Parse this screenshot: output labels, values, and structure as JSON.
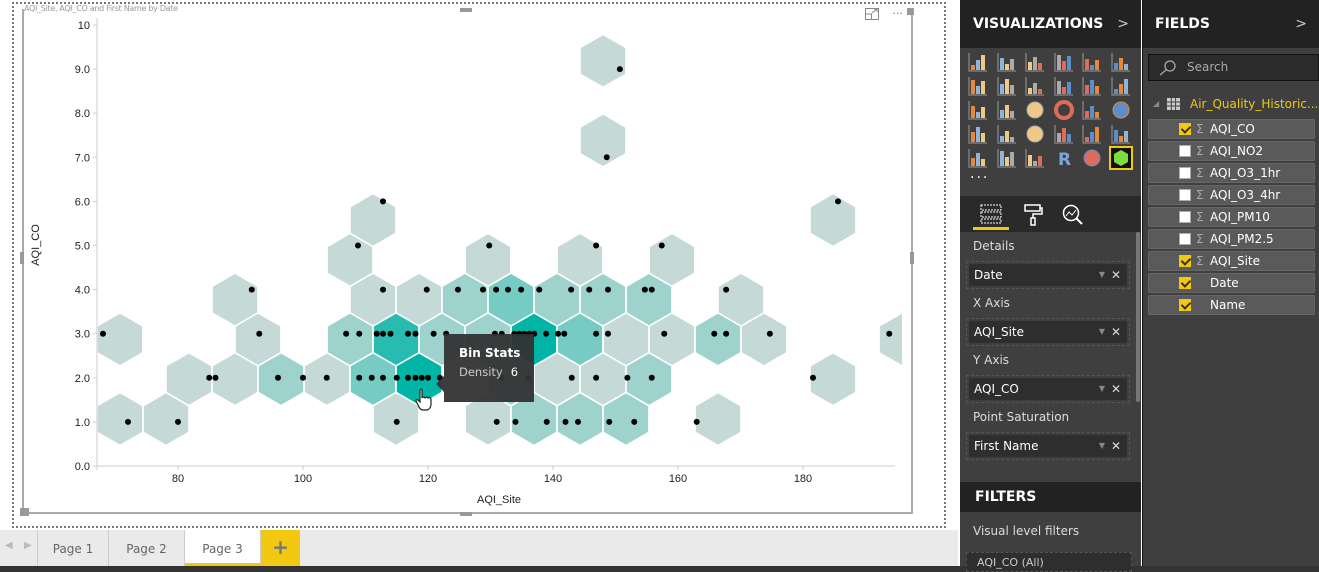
{
  "visual": {
    "title": "AQI_Site, AQI_CO and First Name by Date",
    "focus_icon": "focus-mode-icon",
    "more_icon": "more-options-icon"
  },
  "tooltip": {
    "title": "Bin Stats",
    "label": "Density",
    "value": "6"
  },
  "chart_data": {
    "type": "hexbin scatter",
    "xlabel": "AQI_Site",
    "ylabel": "AQI_CO",
    "xticks": [
      "80",
      "100",
      "120",
      "140",
      "160",
      "180"
    ],
    "xtick_values": [
      80,
      100,
      120,
      140,
      160,
      180
    ],
    "yticks": [
      "0.0",
      "1.0",
      "2.0",
      "3.0",
      "4.0",
      "5.0",
      "6.0",
      "7.0",
      "8.0",
      "9.0",
      "10"
    ],
    "ytick_values": [
      0,
      1,
      2,
      3,
      4,
      5,
      6,
      7,
      8,
      9,
      10
    ],
    "xlim": [
      66.9,
      194.7
    ],
    "ylim": [
      0,
      10
    ],
    "grid": false,
    "color_low": "#c5d9d6",
    "color_high": "#00b5a5",
    "point_color": "#000000",
    "points": [
      [
        150.7,
        9
      ],
      [
        148.6,
        7
      ],
      [
        112.8,
        6
      ],
      [
        185.6,
        6
      ],
      [
        108.8,
        5
      ],
      [
        129.8,
        5
      ],
      [
        146.9,
        5
      ],
      [
        157.4,
        5
      ],
      [
        91.8,
        4
      ],
      [
        112.8,
        4
      ],
      [
        119.8,
        4
      ],
      [
        124.8,
        4
      ],
      [
        128.8,
        4
      ],
      [
        130.9,
        4
      ],
      [
        132.8,
        4
      ],
      [
        134.9,
        4
      ],
      [
        137.8,
        4
      ],
      [
        142.9,
        4
      ],
      [
        145.8,
        4
      ],
      [
        148.8,
        4
      ],
      [
        154.7,
        4
      ],
      [
        155.8,
        4
      ],
      [
        167.7,
        4
      ],
      [
        68,
        3
      ],
      [
        93,
        3
      ],
      [
        106.9,
        3
      ],
      [
        109,
        3
      ],
      [
        111.8,
        3
      ],
      [
        112.8,
        3
      ],
      [
        114,
        3
      ],
      [
        116.8,
        3
      ],
      [
        118,
        3
      ],
      [
        120.9,
        3
      ],
      [
        122.9,
        3
      ],
      [
        130.7,
        3
      ],
      [
        131.8,
        3
      ],
      [
        133.8,
        3
      ],
      [
        134.6,
        3
      ],
      [
        135.4,
        3
      ],
      [
        136.2,
        3
      ],
      [
        137,
        3
      ],
      [
        138.9,
        3
      ],
      [
        140.8,
        3
      ],
      [
        141.8,
        3
      ],
      [
        146.9,
        3
      ],
      [
        148.8,
        3
      ],
      [
        157.8,
        3
      ],
      [
        165.8,
        3
      ],
      [
        167.7,
        3
      ],
      [
        174.7,
        3
      ],
      [
        193.8,
        3
      ],
      [
        85,
        2
      ],
      [
        86,
        2
      ],
      [
        96,
        2
      ],
      [
        100,
        2
      ],
      [
        103.8,
        2
      ],
      [
        109,
        2
      ],
      [
        111,
        2
      ],
      [
        112.8,
        2
      ],
      [
        115,
        2
      ],
      [
        116.8,
        2
      ],
      [
        118,
        2
      ],
      [
        119,
        2
      ],
      [
        120,
        2
      ],
      [
        121.9,
        2
      ],
      [
        131.8,
        2
      ],
      [
        136,
        2
      ],
      [
        143,
        2
      ],
      [
        146.9,
        2
      ],
      [
        151.9,
        2
      ],
      [
        155.8,
        2
      ],
      [
        181.6,
        2
      ],
      [
        72,
        1
      ],
      [
        80,
        1
      ],
      [
        115,
        1
      ],
      [
        131,
        1
      ],
      [
        134,
        1
      ],
      [
        139,
        1
      ],
      [
        142,
        1
      ],
      [
        144,
        1
      ],
      [
        149,
        1
      ],
      [
        153,
        1
      ],
      [
        163,
        1
      ]
    ]
  },
  "pages": {
    "tabs": [
      "Page 1",
      "Page 2",
      "Page 3"
    ],
    "active": "Page 3",
    "add_label": "+"
  },
  "visualizations": {
    "title": "VISUALIZATIONS",
    "icons": [
      "stacked-bar",
      "stacked-column",
      "clustered-bar",
      "clustered-column",
      "100-stacked-bar",
      "100-stacked-column",
      "line-chart",
      "area-chart",
      "stacked-area",
      "line-clustered-column",
      "line-stacked-column",
      "ribbon-chart",
      "waterfall",
      "scatter",
      "pie",
      "donut",
      "treemap",
      "map",
      "filled-map",
      "funnel",
      "gauge",
      "card",
      "multi-row-card",
      "kpi",
      "slicer",
      "table",
      "matrix",
      "r-script",
      "globe-map",
      "hexbin-scatter"
    ],
    "selected": "hexbin-scatter",
    "more": "...",
    "pane_tabs": [
      "fields-tab",
      "format-tab",
      "analytics-tab"
    ],
    "wells": [
      {
        "label": "Details",
        "value": "Date"
      },
      {
        "label": "X Axis",
        "value": "AQI_Site"
      },
      {
        "label": "Y Axis",
        "value": "AQI_CO"
      },
      {
        "label": "Point Saturation",
        "value": "First Name"
      }
    ]
  },
  "filters": {
    "title": "FILTERS",
    "visual_level": "Visual level filters",
    "first_filter": "AQI_CO (All)"
  },
  "fields": {
    "title": "FIELDS",
    "search_placeholder": "Search",
    "table": "Air_Quality_Historic...",
    "items": [
      {
        "name": "AQI_CO",
        "checked": true,
        "sigma": true
      },
      {
        "name": "AQI_NO2",
        "checked": false,
        "sigma": true
      },
      {
        "name": "AQI_O3_1hr",
        "checked": false,
        "sigma": true
      },
      {
        "name": "AQI_O3_4hr",
        "checked": false,
        "sigma": true
      },
      {
        "name": "AQI_PM10",
        "checked": false,
        "sigma": true
      },
      {
        "name": "AQI_PM2.5",
        "checked": false,
        "sigma": true
      },
      {
        "name": "AQI_Site",
        "checked": true,
        "sigma": true
      },
      {
        "name": "Date",
        "checked": true,
        "sigma": false
      },
      {
        "name": "Name",
        "checked": true,
        "sigma": false
      }
    ]
  },
  "colors": {
    "accent": "#f2c811",
    "panel": "#3f3f3f",
    "header": "#222222"
  }
}
